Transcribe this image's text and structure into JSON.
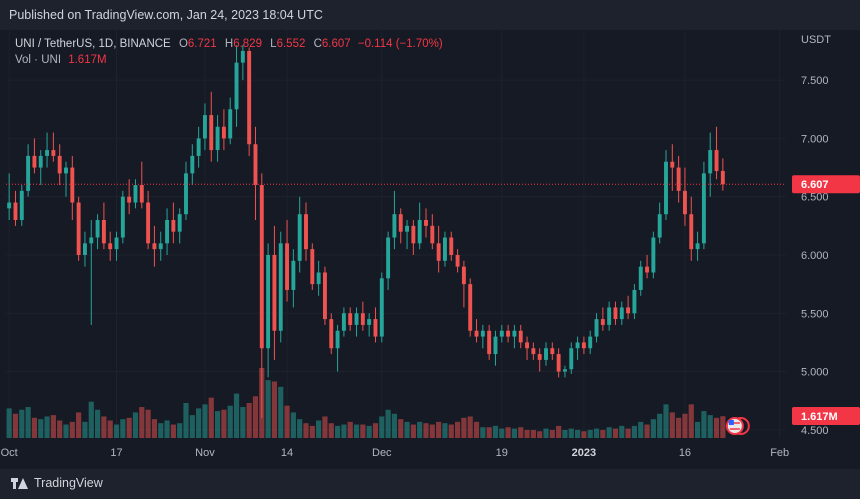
{
  "header": {
    "published": "Published on TradingView.com, Jan 24, 2023 18:04 UTC"
  },
  "legend": {
    "symbol": "UNI / TetherUS, 1D, BINANCE",
    "o_label": "O",
    "o": "6.721",
    "h_label": "H",
    "h": "6.829",
    "l_label": "L",
    "l": "6.552",
    "c_label": "C",
    "c": "6.607",
    "change": "−0.114 (−1.70%)",
    "vol_label": "Vol · UNI",
    "vol": "1.617M"
  },
  "footer": {
    "brand": "TradingView"
  },
  "chart_data": {
    "type": "candlestick",
    "title": "UNI / TetherUS, 1D, BINANCE",
    "currency_label": "USDT",
    "y_ticks": [
      "7.500",
      "7.000",
      "6.500",
      "6.000",
      "5.500",
      "5.000",
      "4.500"
    ],
    "y_tick_values": [
      7.5,
      7.0,
      6.5,
      6.0,
      5.5,
      5.0,
      4.5
    ],
    "ylim": [
      4.43,
      7.93
    ],
    "x_ticks": [
      "Oct",
      "17",
      "Nov",
      "14",
      "Dec",
      "19",
      "2023",
      "16",
      "Feb"
    ],
    "x_tick_index": [
      0,
      17,
      31,
      44,
      59,
      78,
      91,
      107,
      122
    ],
    "x_range": [
      -0.5,
      123
    ],
    "last_price": 6.607,
    "last_price_label": "6.607",
    "volume_label": "1.617M",
    "volume_max": 5.2,
    "candles_ohlcv": [
      [
        6.4,
        6.7,
        6.3,
        6.45,
        2.2
      ],
      [
        6.45,
        6.55,
        6.25,
        6.3,
        1.8
      ],
      [
        6.3,
        6.6,
        6.25,
        6.55,
        2.1
      ],
      [
        6.55,
        6.95,
        6.5,
        6.85,
        2.3
      ],
      [
        6.85,
        7.0,
        6.7,
        6.75,
        1.5
      ],
      [
        6.75,
        6.9,
        6.6,
        6.85,
        1.4
      ],
      [
        6.85,
        7.05,
        6.75,
        6.9,
        1.6
      ],
      [
        6.9,
        7.05,
        6.8,
        6.85,
        1.7
      ],
      [
        6.85,
        6.95,
        6.6,
        6.7,
        1.3
      ],
      [
        6.7,
        6.8,
        6.5,
        6.75,
        1.0
      ],
      [
        6.75,
        6.85,
        6.3,
        6.45,
        1.2
      ],
      [
        6.45,
        6.5,
        5.95,
        6.0,
        1.9
      ],
      [
        6.0,
        6.2,
        5.9,
        6.1,
        1.2
      ],
      [
        6.1,
        6.3,
        5.4,
        6.15,
        2.7
      ],
      [
        6.15,
        6.35,
        6.05,
        6.3,
        2.1
      ],
      [
        6.3,
        6.45,
        6.05,
        6.1,
        1.6
      ],
      [
        6.1,
        6.2,
        5.95,
        6.05,
        1.3
      ],
      [
        6.05,
        6.2,
        5.95,
        6.15,
        1.0
      ],
      [
        6.15,
        6.55,
        6.1,
        6.5,
        1.4
      ],
      [
        6.5,
        6.65,
        6.35,
        6.45,
        1.5
      ],
      [
        6.45,
        6.65,
        6.4,
        6.6,
        1.9
      ],
      [
        6.6,
        6.8,
        6.4,
        6.45,
        2.3
      ],
      [
        6.45,
        6.55,
        6.05,
        6.1,
        2.1
      ],
      [
        6.1,
        6.25,
        5.9,
        6.05,
        1.4
      ],
      [
        6.05,
        6.2,
        5.95,
        6.1,
        1.1
      ],
      [
        6.1,
        6.4,
        6.0,
        6.3,
        1.3
      ],
      [
        6.3,
        6.45,
        6.1,
        6.2,
        1.0
      ],
      [
        6.2,
        6.4,
        6.1,
        6.35,
        1.1
      ],
      [
        6.35,
        6.8,
        6.3,
        6.7,
        2.6
      ],
      [
        6.7,
        6.95,
        6.6,
        6.85,
        1.7
      ],
      [
        6.85,
        7.1,
        6.75,
        7.0,
        2.2
      ],
      [
        7.0,
        7.3,
        6.9,
        7.2,
        2.5
      ],
      [
        7.2,
        7.4,
        6.8,
        6.9,
        3.0
      ],
      [
        6.9,
        7.2,
        6.8,
        7.1,
        2.0
      ],
      [
        7.1,
        7.25,
        6.9,
        7.0,
        2.1
      ],
      [
        7.0,
        7.35,
        6.95,
        7.25,
        2.4
      ],
      [
        7.25,
        7.8,
        7.1,
        7.65,
        3.3
      ],
      [
        7.65,
        7.8,
        7.5,
        7.75,
        2.3
      ],
      [
        7.75,
        7.78,
        6.85,
        6.95,
        2.6
      ],
      [
        6.95,
        7.1,
        6.3,
        6.6,
        3.1
      ],
      [
        6.6,
        6.7,
        4.6,
        5.2,
        5.2
      ],
      [
        5.2,
        6.1,
        4.95,
        6.0,
        4.3
      ],
      [
        6.0,
        6.25,
        5.1,
        5.35,
        4.2
      ],
      [
        5.35,
        6.2,
        5.25,
        6.1,
        3.8
      ],
      [
        6.1,
        6.3,
        5.6,
        5.7,
        2.4
      ],
      [
        5.7,
        6.05,
        5.55,
        5.95,
        1.9
      ],
      [
        5.95,
        6.5,
        5.85,
        6.35,
        1.4
      ],
      [
        6.35,
        6.45,
        5.95,
        6.05,
        1.1
      ],
      [
        6.05,
        6.1,
        5.7,
        5.75,
        0.9
      ],
      [
        5.75,
        5.95,
        5.65,
        5.85,
        1.3
      ],
      [
        5.85,
        5.9,
        5.4,
        5.45,
        1.6
      ],
      [
        5.45,
        5.5,
        5.15,
        5.2,
        1.1
      ],
      [
        5.2,
        5.4,
        5.0,
        5.35,
        0.9
      ],
      [
        5.35,
        5.55,
        5.3,
        5.5,
        1.0
      ],
      [
        5.5,
        5.55,
        5.35,
        5.4,
        1.2
      ],
      [
        5.4,
        5.55,
        5.3,
        5.5,
        1.0
      ],
      [
        5.5,
        5.6,
        5.35,
        5.4,
        1.0
      ],
      [
        5.4,
        5.5,
        5.3,
        5.45,
        0.9
      ],
      [
        5.45,
        5.55,
        5.25,
        5.3,
        1.1
      ],
      [
        5.3,
        5.85,
        5.25,
        5.8,
        1.6
      ],
      [
        5.8,
        6.2,
        5.7,
        6.15,
        2.1
      ],
      [
        6.15,
        6.55,
        6.05,
        6.35,
        1.8
      ],
      [
        6.35,
        6.4,
        6.1,
        6.2,
        1.4
      ],
      [
        6.2,
        6.3,
        6.05,
        6.25,
        1.2
      ],
      [
        6.25,
        6.3,
        6.0,
        6.1,
        1.0
      ],
      [
        6.1,
        6.45,
        6.05,
        6.3,
        1.2
      ],
      [
        6.3,
        6.4,
        6.15,
        6.25,
        1.1
      ],
      [
        6.25,
        6.35,
        6.05,
        6.1,
        1.0
      ],
      [
        6.1,
        6.25,
        5.85,
        5.95,
        1.2
      ],
      [
        5.95,
        6.2,
        5.9,
        6.15,
        1.1
      ],
      [
        6.15,
        6.2,
        5.95,
        6.0,
        1.0
      ],
      [
        6.0,
        6.05,
        5.85,
        5.9,
        1.2
      ],
      [
        5.9,
        5.95,
        5.55,
        5.75,
        1.5
      ],
      [
        5.75,
        5.8,
        5.3,
        5.35,
        1.6
      ],
      [
        5.35,
        5.45,
        5.25,
        5.3,
        1.2
      ],
      [
        5.3,
        5.4,
        5.2,
        5.35,
        0.8
      ],
      [
        5.35,
        5.4,
        5.1,
        5.15,
        0.8
      ],
      [
        5.15,
        5.35,
        5.05,
        5.3,
        0.9
      ],
      [
        5.3,
        5.4,
        5.25,
        5.35,
        0.7
      ],
      [
        5.35,
        5.4,
        5.25,
        5.3,
        0.8
      ],
      [
        5.3,
        5.4,
        5.2,
        5.35,
        0.7
      ],
      [
        5.35,
        5.4,
        5.2,
        5.25,
        0.8
      ],
      [
        5.25,
        5.3,
        5.1,
        5.2,
        0.6
      ],
      [
        5.2,
        5.25,
        5.1,
        5.15,
        0.6
      ],
      [
        5.15,
        5.2,
        5.0,
        5.1,
        0.5
      ],
      [
        5.1,
        5.25,
        5.05,
        5.2,
        0.7
      ],
      [
        5.2,
        5.25,
        5.1,
        5.15,
        0.6
      ],
      [
        5.15,
        5.2,
        4.95,
        5.0,
        0.9
      ],
      [
        5.0,
        5.05,
        4.95,
        5.02,
        0.6
      ],
      [
        5.02,
        5.25,
        4.98,
        5.2,
        0.7
      ],
      [
        5.2,
        5.3,
        5.1,
        5.25,
        0.6
      ],
      [
        5.25,
        5.3,
        5.15,
        5.2,
        0.5
      ],
      [
        5.2,
        5.35,
        5.15,
        5.3,
        0.6
      ],
      [
        5.3,
        5.5,
        5.25,
        5.45,
        0.7
      ],
      [
        5.45,
        5.55,
        5.35,
        5.4,
        0.6
      ],
      [
        5.4,
        5.6,
        5.35,
        5.55,
        0.8
      ],
      [
        5.55,
        5.6,
        5.4,
        5.45,
        0.7
      ],
      [
        5.45,
        5.6,
        5.4,
        5.55,
        0.9
      ],
      [
        5.55,
        5.65,
        5.45,
        5.5,
        0.7
      ],
      [
        5.5,
        5.75,
        5.45,
        5.7,
        0.9
      ],
      [
        5.7,
        5.95,
        5.65,
        5.9,
        1.2
      ],
      [
        5.9,
        6.0,
        5.8,
        5.85,
        1.0
      ],
      [
        5.85,
        6.2,
        5.8,
        6.15,
        1.4
      ],
      [
        6.15,
        6.45,
        6.1,
        6.35,
        1.8
      ],
      [
        6.35,
        6.9,
        6.3,
        6.8,
        2.5
      ],
      [
        6.8,
        6.95,
        6.55,
        6.75,
        1.9
      ],
      [
        6.75,
        6.85,
        6.45,
        6.55,
        1.5
      ],
      [
        6.55,
        6.75,
        6.25,
        6.35,
        1.8
      ],
      [
        6.35,
        6.5,
        5.95,
        6.05,
        2.5
      ],
      [
        6.05,
        6.2,
        5.95,
        6.1,
        1.2
      ],
      [
        6.1,
        6.8,
        6.05,
        6.7,
        2.0
      ],
      [
        6.7,
        7.05,
        6.5,
        6.9,
        1.7
      ],
      [
        6.9,
        7.1,
        6.65,
        6.72,
        1.5
      ],
      [
        6.721,
        6.829,
        6.552,
        6.607,
        1.617
      ]
    ]
  },
  "colors": {
    "up": "#26a69a",
    "down": "#ef5350",
    "bg": "#161a25",
    "text": "#b2b5be",
    "grid": "#1e222d",
    "price_tag": "#f23645"
  }
}
